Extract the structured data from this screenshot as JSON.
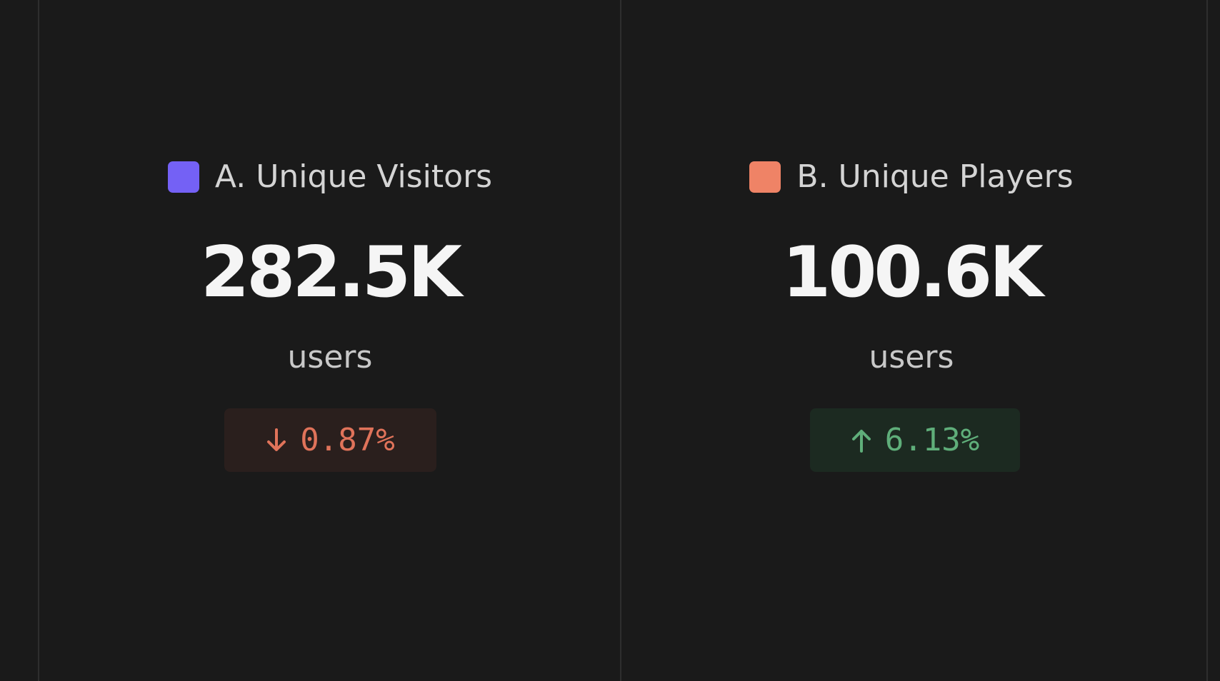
{
  "cards": [
    {
      "label": "A. Unique Visitors",
      "value": "282.5K",
      "unit": "users",
      "change": "0.87%"
    },
    {
      "label": "B. Unique Players",
      "value": "100.6K",
      "unit": "users",
      "change": "6.13%"
    }
  ]
}
